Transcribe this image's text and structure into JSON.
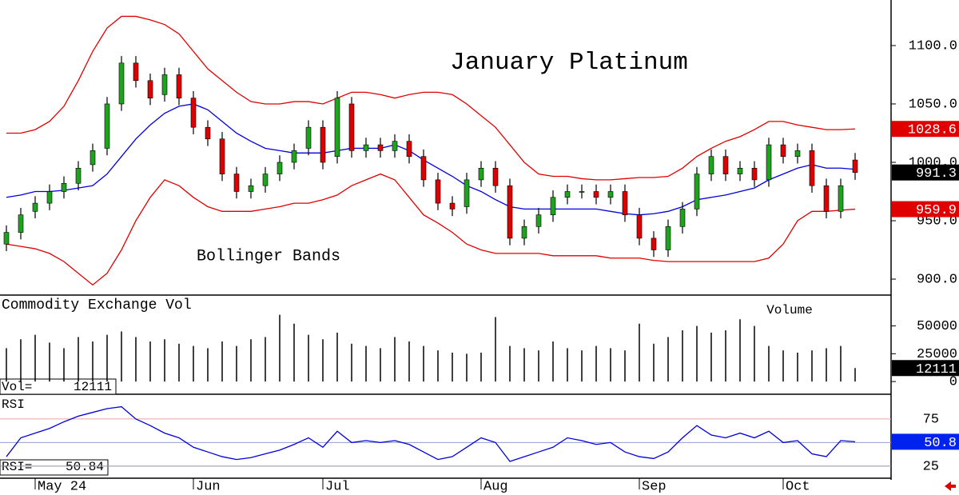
{
  "chart_data": {
    "type": "candlestick",
    "title": "January Platinum",
    "annotation": "Bollinger Bands",
    "categories": [
      null,
      null,
      "May 24",
      null,
      null,
      null,
      null,
      null,
      null,
      null,
      null,
      null,
      null,
      "Jun",
      null,
      null,
      null,
      null,
      null,
      null,
      null,
      null,
      "Jul",
      null,
      null,
      null,
      null,
      null,
      null,
      null,
      null,
      null,
      null,
      "Aug",
      null,
      null,
      null,
      null,
      null,
      null,
      null,
      null,
      null,
      null,
      "Sep",
      null,
      null,
      null,
      null,
      null,
      null,
      null,
      null,
      null,
      "Oct",
      null,
      null,
      null,
      null,
      null
    ],
    "open": [
      930,
      940,
      958,
      965,
      975,
      982,
      998,
      1012,
      1050,
      1085,
      1070,
      1058,
      1075,
      1055,
      1030,
      1020,
      990,
      975,
      980,
      990,
      1000,
      1012,
      1030,
      1005,
      1050,
      1010,
      1015,
      1010,
      1018,
      1005,
      985,
      965,
      962,
      985,
      995,
      980,
      935,
      945,
      955,
      970,
      975,
      975,
      970,
      975,
      955,
      935,
      925,
      945,
      960,
      990,
      1005,
      990,
      995,
      985,
      1015,
      1005,
      1010,
      980,
      958,
      1002
    ],
    "high": [
      946,
      961,
      971,
      981,
      988,
      1001,
      1016,
      1056,
      1091,
      1091,
      1076,
      1081,
      1081,
      1061,
      1036,
      1026,
      996,
      986,
      996,
      1006,
      1016,
      1036,
      1036,
      1061,
      1056,
      1021,
      1021,
      1024,
      1024,
      1011,
      991,
      971,
      991,
      1001,
      1001,
      986,
      951,
      961,
      976,
      981,
      981,
      981,
      981,
      981,
      961,
      941,
      951,
      966,
      996,
      1011,
      1011,
      1001,
      1001,
      1021,
      1021,
      1016,
      1016,
      986,
      986,
      1008
    ],
    "low": [
      924,
      934,
      952,
      959,
      969,
      976,
      992,
      1006,
      1044,
      1064,
      1049,
      1052,
      1049,
      1024,
      1014,
      984,
      969,
      969,
      974,
      984,
      994,
      1006,
      994,
      999,
      1004,
      1004,
      1004,
      1004,
      999,
      979,
      959,
      954,
      956,
      979,
      974,
      929,
      929,
      939,
      949,
      964,
      969,
      964,
      964,
      949,
      929,
      919,
      919,
      939,
      954,
      984,
      984,
      984,
      979,
      979,
      999,
      999,
      974,
      952,
      952,
      985
    ],
    "close": [
      940,
      955,
      965,
      975,
      982,
      995,
      1010,
      1050,
      1085,
      1070,
      1055,
      1075,
      1055,
      1030,
      1020,
      990,
      975,
      980,
      990,
      1000,
      1010,
      1030,
      1000,
      1055,
      1010,
      1015,
      1010,
      1018,
      1005,
      985,
      965,
      960,
      985,
      995,
      980,
      935,
      945,
      955,
      970,
      975,
      975,
      970,
      975,
      955,
      935,
      925,
      945,
      960,
      990,
      1005,
      990,
      995,
      985,
      1015,
      1005,
      1010,
      980,
      958,
      980,
      991.3
    ],
    "up_color": "#1fa31f",
    "down_color": "#dd0000",
    "upper": {
      "color": "#e00000",
      "values": [
        1025,
        1025,
        1028,
        1035,
        1048,
        1070,
        1095,
        1115,
        1125,
        1125,
        1122,
        1118,
        1110,
        1095,
        1080,
        1070,
        1060,
        1052,
        1050,
        1050,
        1052,
        1052,
        1050,
        1055,
        1060,
        1060,
        1058,
        1055,
        1058,
        1060,
        1060,
        1058,
        1050,
        1040,
        1030,
        1015,
        1000,
        990,
        988,
        988,
        986,
        985,
        985,
        986,
        987,
        987,
        988,
        995,
        1005,
        1012,
        1018,
        1022,
        1028,
        1035,
        1035,
        1032,
        1030,
        1028,
        1028,
        1028.6
      ]
    },
    "middle": {
      "color": "#0000dd",
      "values": [
        970,
        972,
        975,
        975,
        976,
        978,
        980,
        990,
        1005,
        1020,
        1032,
        1042,
        1048,
        1050,
        1045,
        1035,
        1025,
        1018,
        1012,
        1010,
        1008,
        1008,
        1008,
        1010,
        1012,
        1012,
        1012,
        1015,
        1010,
        1002,
        995,
        988,
        980,
        975,
        968,
        962,
        960,
        960,
        960,
        960,
        960,
        960,
        958,
        956,
        955,
        956,
        958,
        962,
        968,
        970,
        972,
        975,
        978,
        985,
        990,
        995,
        998,
        995,
        995,
        994
      ]
    },
    "lower": {
      "color": "#e00000",
      "values": [
        930,
        928,
        926,
        922,
        915,
        905,
        895,
        905,
        925,
        950,
        970,
        985,
        980,
        970,
        962,
        958,
        958,
        958,
        960,
        962,
        965,
        965,
        968,
        972,
        980,
        985,
        990,
        985,
        970,
        955,
        948,
        940,
        930,
        925,
        922,
        922,
        922,
        922,
        920,
        920,
        920,
        920,
        918,
        918,
        918,
        916,
        915,
        915,
        915,
        915,
        915,
        915,
        915,
        918,
        930,
        950,
        958,
        958,
        959,
        959.9
      ]
    },
    "ylim": [
      887,
      1139
    ],
    "yticks": [
      {
        "value": 900,
        "label": "900.0"
      },
      {
        "value": 950,
        "label": "950.0"
      },
      {
        "value": 1000,
        "label": "1000.0"
      },
      {
        "value": 1050,
        "label": "1050.0"
      },
      {
        "value": 1100,
        "label": "1100.0"
      }
    ],
    "volume": {
      "title": "Commodity Exchange Vol",
      "label": "Volume",
      "readout_label": "Vol=",
      "color": "#000000",
      "values": [
        30000,
        38000,
        42000,
        35000,
        30000,
        40000,
        36000,
        42000,
        45000,
        40000,
        36000,
        38000,
        34000,
        32000,
        30000,
        36000,
        32000,
        38000,
        40000,
        60000,
        52000,
        42000,
        38000,
        44000,
        34000,
        32000,
        30000,
        40000,
        36000,
        32000,
        28000,
        26000,
        25000,
        26000,
        58000,
        32000,
        30000,
        28000,
        36000,
        30000,
        28000,
        32000,
        30000,
        28000,
        52000,
        34000,
        40000,
        46000,
        50000,
        44000,
        46000,
        56000,
        50000,
        32000,
        28000,
        26000,
        28000,
        30000,
        32000,
        12111
      ],
      "ylim": [
        -10700,
        77000
      ],
      "yticks": [
        0,
        25000,
        50000
      ]
    },
    "rsi": {
      "title": "RSI",
      "readout_label": "RSI=",
      "box_label": "50.8",
      "color": "#0000dd",
      "values": [
        35,
        55,
        60,
        65,
        72,
        78,
        82,
        86,
        88,
        75,
        68,
        60,
        55,
        45,
        40,
        35,
        32,
        34,
        38,
        42,
        48,
        55,
        45,
        62,
        50,
        52,
        50,
        52,
        48,
        40,
        32,
        35,
        45,
        55,
        50,
        30,
        35,
        40,
        45,
        55,
        52,
        48,
        50,
        40,
        35,
        33,
        40,
        55,
        68,
        58,
        55,
        60,
        55,
        62,
        50,
        52,
        38,
        35,
        52,
        50.84
      ],
      "ylim": [
        13,
        100.4
      ],
      "yticks": [
        25,
        50,
        75
      ]
    }
  }
}
